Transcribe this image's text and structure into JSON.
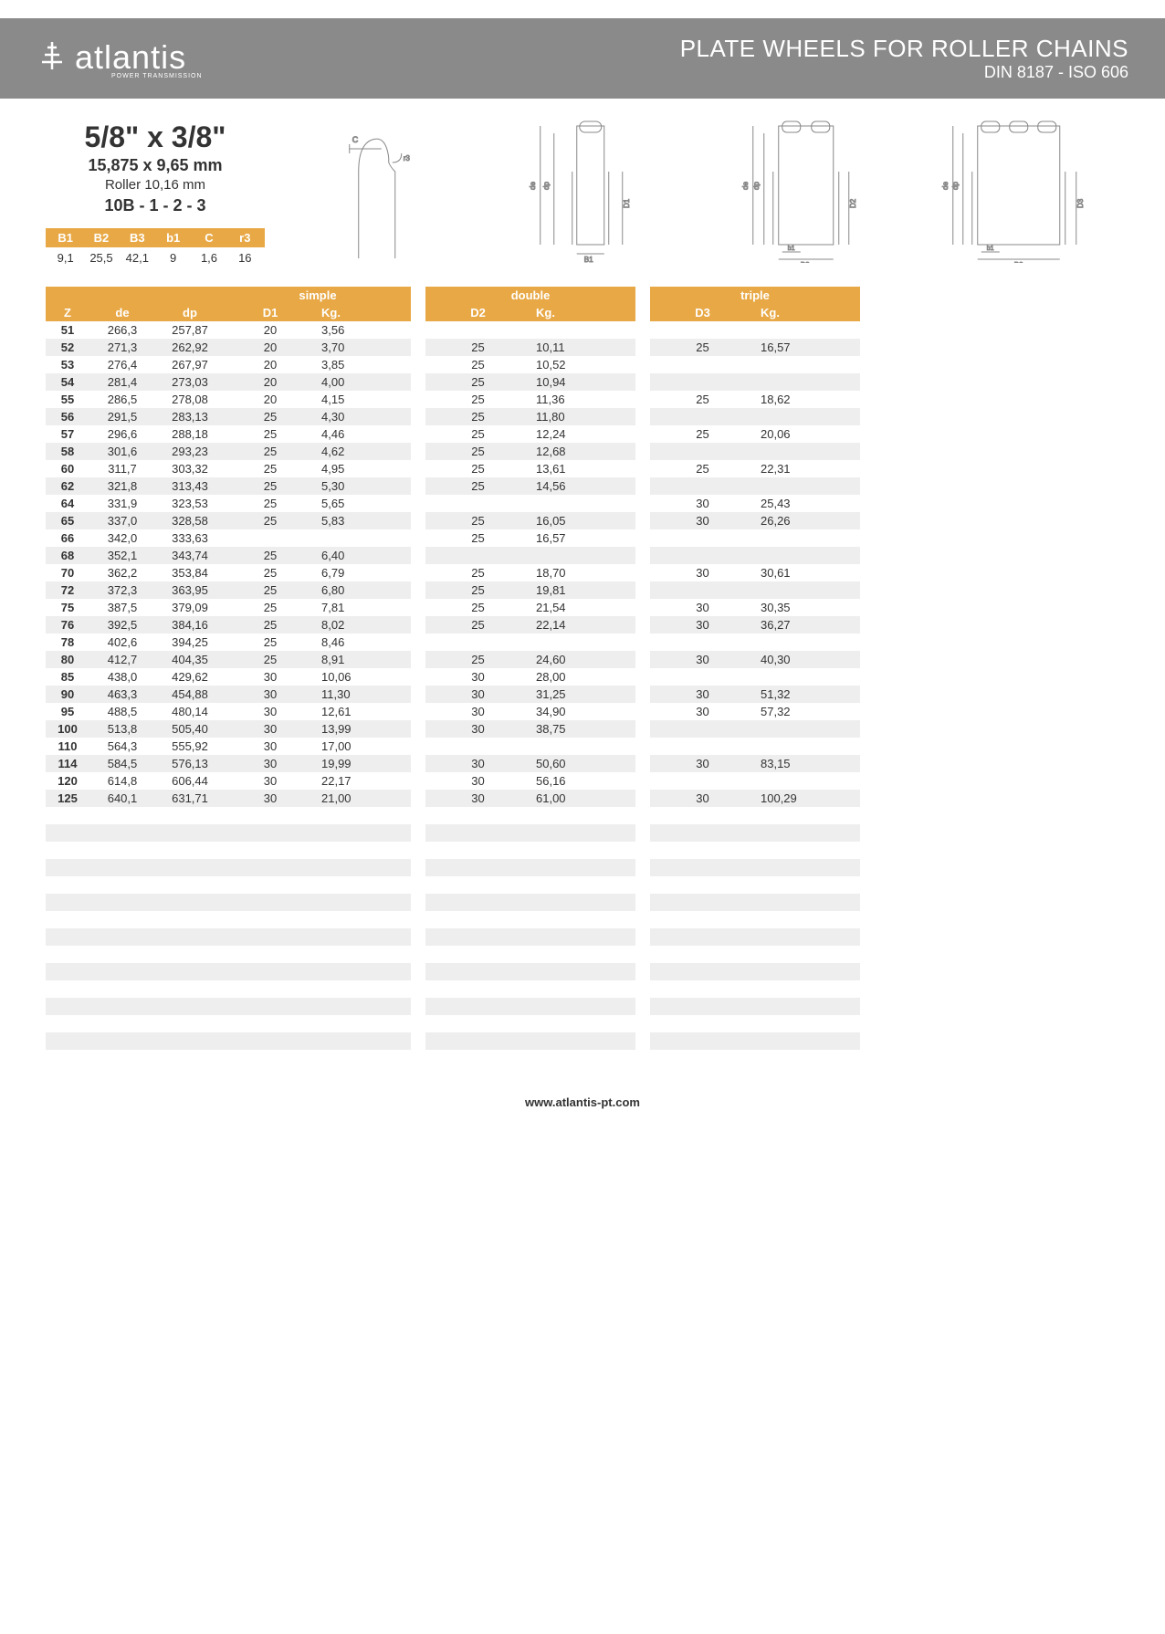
{
  "header": {
    "logo_text": "atlantis",
    "logo_sub": "POWER TRANSMISSION",
    "title": "PLATE WHEELS FOR ROLLER CHAINS",
    "subtitle": "DIN 8187 - ISO 606"
  },
  "spec": {
    "size_main": "5/8\" x 3/8\"",
    "size_mm": "15,875 x 9,65 mm",
    "roller": "Roller 10,16 mm",
    "model": "10B - 1 - 2 - 3"
  },
  "small_table": {
    "headers": [
      "B1",
      "B2",
      "B3",
      "b1",
      "C",
      "r3"
    ],
    "values": [
      "9,1",
      "25,5",
      "42,1",
      "9",
      "1,6",
      "16"
    ]
  },
  "groups": {
    "g1_title": "simple",
    "g2_title": "double",
    "g3_title": "triple",
    "g1_sub": [
      "Z",
      "de",
      "dp",
      "D1",
      "Kg."
    ],
    "g2_sub": [
      "D2",
      "Kg."
    ],
    "g3_sub": [
      "D3",
      "Kg."
    ]
  },
  "colors": {
    "header_bg": "#8a8a8a",
    "accent": "#e8a845",
    "row_even": "#eeeeee"
  },
  "rows": [
    {
      "z": "51",
      "de": "266,3",
      "dp": "257,87",
      "d1": "20",
      "kg1": "3,56",
      "d2": "",
      "kg2": "",
      "d3": "",
      "kg3": ""
    },
    {
      "z": "52",
      "de": "271,3",
      "dp": "262,92",
      "d1": "20",
      "kg1": "3,70",
      "d2": "25",
      "kg2": "10,11",
      "d3": "25",
      "kg3": "16,57"
    },
    {
      "z": "53",
      "de": "276,4",
      "dp": "267,97",
      "d1": "20",
      "kg1": "3,85",
      "d2": "25",
      "kg2": "10,52",
      "d3": "",
      "kg3": ""
    },
    {
      "z": "54",
      "de": "281,4",
      "dp": "273,03",
      "d1": "20",
      "kg1": "4,00",
      "d2": "25",
      "kg2": "10,94",
      "d3": "",
      "kg3": ""
    },
    {
      "z": "55",
      "de": "286,5",
      "dp": "278,08",
      "d1": "20",
      "kg1": "4,15",
      "d2": "25",
      "kg2": "11,36",
      "d3": "25",
      "kg3": "18,62"
    },
    {
      "z": "56",
      "de": "291,5",
      "dp": "283,13",
      "d1": "25",
      "kg1": "4,30",
      "d2": "25",
      "kg2": "11,80",
      "d3": "",
      "kg3": ""
    },
    {
      "z": "57",
      "de": "296,6",
      "dp": "288,18",
      "d1": "25",
      "kg1": "4,46",
      "d2": "25",
      "kg2": "12,24",
      "d3": "25",
      "kg3": "20,06"
    },
    {
      "z": "58",
      "de": "301,6",
      "dp": "293,23",
      "d1": "25",
      "kg1": "4,62",
      "d2": "25",
      "kg2": "12,68",
      "d3": "",
      "kg3": ""
    },
    {
      "z": "60",
      "de": "311,7",
      "dp": "303,32",
      "d1": "25",
      "kg1": "4,95",
      "d2": "25",
      "kg2": "13,61",
      "d3": "25",
      "kg3": "22,31"
    },
    {
      "z": "62",
      "de": "321,8",
      "dp": "313,43",
      "d1": "25",
      "kg1": "5,30",
      "d2": "25",
      "kg2": "14,56",
      "d3": "",
      "kg3": ""
    },
    {
      "z": "64",
      "de": "331,9",
      "dp": "323,53",
      "d1": "25",
      "kg1": "5,65",
      "d2": "",
      "kg2": "",
      "d3": "30",
      "kg3": "25,43"
    },
    {
      "z": "65",
      "de": "337,0",
      "dp": "328,58",
      "d1": "25",
      "kg1": "5,83",
      "d2": "25",
      "kg2": "16,05",
      "d3": "30",
      "kg3": "26,26"
    },
    {
      "z": "66",
      "de": "342,0",
      "dp": "333,63",
      "d1": "",
      "kg1": "",
      "d2": "25",
      "kg2": "16,57",
      "d3": "",
      "kg3": ""
    },
    {
      "z": "68",
      "de": "352,1",
      "dp": "343,74",
      "d1": "25",
      "kg1": "6,40",
      "d2": "",
      "kg2": "",
      "d3": "",
      "kg3": ""
    },
    {
      "z": "70",
      "de": "362,2",
      "dp": "353,84",
      "d1": "25",
      "kg1": "6,79",
      "d2": "25",
      "kg2": "18,70",
      "d3": "30",
      "kg3": "30,61"
    },
    {
      "z": "72",
      "de": "372,3",
      "dp": "363,95",
      "d1": "25",
      "kg1": "6,80",
      "d2": "25",
      "kg2": "19,81",
      "d3": "",
      "kg3": ""
    },
    {
      "z": "75",
      "de": "387,5",
      "dp": "379,09",
      "d1": "25",
      "kg1": "7,81",
      "d2": "25",
      "kg2": "21,54",
      "d3": "30",
      "kg3": "30,35"
    },
    {
      "z": "76",
      "de": "392,5",
      "dp": "384,16",
      "d1": "25",
      "kg1": "8,02",
      "d2": "25",
      "kg2": "22,14",
      "d3": "30",
      "kg3": "36,27"
    },
    {
      "z": "78",
      "de": "402,6",
      "dp": "394,25",
      "d1": "25",
      "kg1": "8,46",
      "d2": "",
      "kg2": "",
      "d3": "",
      "kg3": ""
    },
    {
      "z": "80",
      "de": "412,7",
      "dp": "404,35",
      "d1": "25",
      "kg1": "8,91",
      "d2": "25",
      "kg2": "24,60",
      "d3": "30",
      "kg3": "40,30"
    },
    {
      "z": "85",
      "de": "438,0",
      "dp": "429,62",
      "d1": "30",
      "kg1": "10,06",
      "d2": "30",
      "kg2": "28,00",
      "d3": "",
      "kg3": ""
    },
    {
      "z": "90",
      "de": "463,3",
      "dp": "454,88",
      "d1": "30",
      "kg1": "11,30",
      "d2": "30",
      "kg2": "31,25",
      "d3": "30",
      "kg3": "51,32"
    },
    {
      "z": "95",
      "de": "488,5",
      "dp": "480,14",
      "d1": "30",
      "kg1": "12,61",
      "d2": "30",
      "kg2": "34,90",
      "d3": "30",
      "kg3": "57,32"
    },
    {
      "z": "100",
      "de": "513,8",
      "dp": "505,40",
      "d1": "30",
      "kg1": "13,99",
      "d2": "30",
      "kg2": "38,75",
      "d3": "",
      "kg3": ""
    },
    {
      "z": "110",
      "de": "564,3",
      "dp": "555,92",
      "d1": "30",
      "kg1": "17,00",
      "d2": "",
      "kg2": "",
      "d3": "",
      "kg3": ""
    },
    {
      "z": "114",
      "de": "584,5",
      "dp": "576,13",
      "d1": "30",
      "kg1": "19,99",
      "d2": "30",
      "kg2": "50,60",
      "d3": "30",
      "kg3": "83,15"
    },
    {
      "z": "120",
      "de": "614,8",
      "dp": "606,44",
      "d1": "30",
      "kg1": "22,17",
      "d2": "30",
      "kg2": "56,16",
      "d3": "",
      "kg3": ""
    },
    {
      "z": "125",
      "de": "640,1",
      "dp": "631,71",
      "d1": "30",
      "kg1": "21,00",
      "d2": "30",
      "kg2": "61,00",
      "d3": "30",
      "kg3": "100,29"
    }
  ],
  "empty_rows": 14,
  "footer": "www.atlantis-pt.com"
}
